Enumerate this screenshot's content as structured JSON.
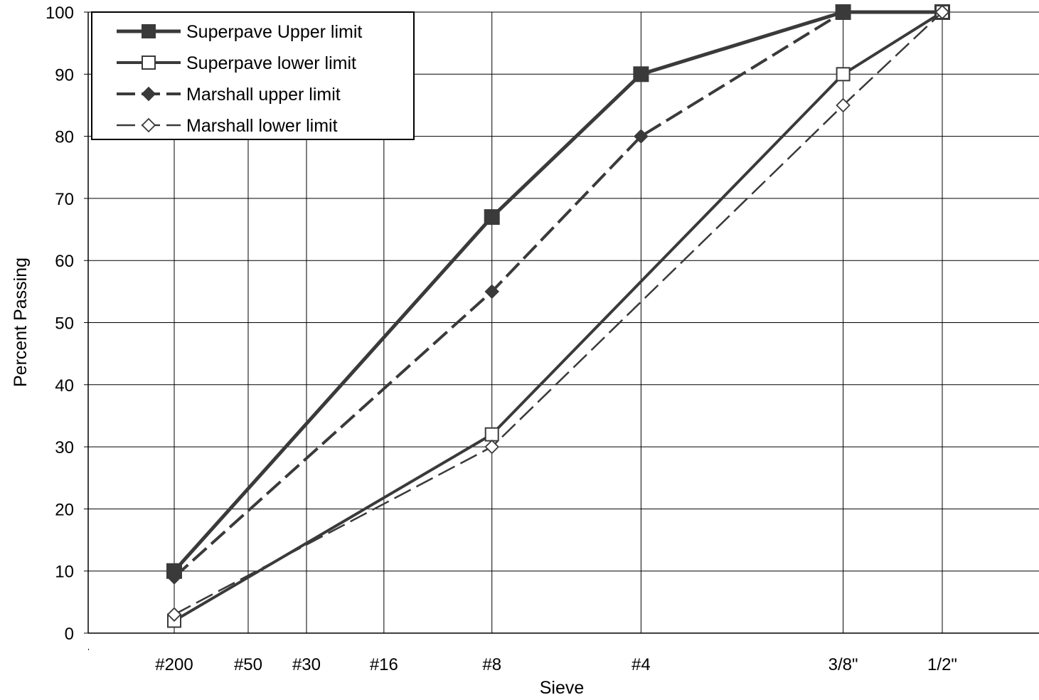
{
  "chart_data": {
    "type": "line",
    "xlabel": "Sieve",
    "ylabel": "Percent Passing",
    "ylim": [
      0,
      100
    ],
    "yticks": [
      "0",
      "10",
      "20",
      "30",
      "40",
      "50",
      "60",
      "70",
      "80",
      "90",
      "100"
    ],
    "grid": true,
    "legend_position": "top-left",
    "categories": [
      "#200",
      "#50",
      "#30",
      "#16",
      "#8",
      "#4",
      "3/8\"",
      "1/2\""
    ],
    "sieve_sizes_mm": [
      0.075,
      0.3,
      0.6,
      1.18,
      2.36,
      4.75,
      9.5,
      12.5
    ],
    "x_scale": "power 0.45",
    "series": [
      {
        "name": "Superpave Upper limit",
        "x": [
          0.075,
          2.36,
          4.75,
          9.5,
          12.5
        ],
        "values": [
          10,
          67,
          90,
          100,
          100
        ],
        "line": "solid",
        "width": 5,
        "marker": "square",
        "filled": true,
        "color": "#3a3a3a"
      },
      {
        "name": "Superpave lower limit",
        "x": [
          0.075,
          2.36,
          9.5,
          12.5
        ],
        "values": [
          2,
          32,
          90,
          100
        ],
        "line": "solid",
        "width": 4,
        "marker": "square",
        "filled": false,
        "color": "#3a3a3a"
      },
      {
        "name": "Marshall upper limit",
        "x": [
          0.075,
          2.36,
          4.75,
          9.5,
          12.5
        ],
        "values": [
          9,
          55,
          80,
          100,
          100
        ],
        "line": "dashed",
        "width": 4,
        "marker": "diamond",
        "filled": true,
        "color": "#3a3a3a"
      },
      {
        "name": "Marshall lower limit",
        "x": [
          0.075,
          2.36,
          9.5,
          12.5
        ],
        "values": [
          3,
          30,
          85,
          100
        ],
        "line": "dashed",
        "width": 2.5,
        "marker": "diamond",
        "filled": false,
        "color": "#3a3a3a"
      }
    ]
  }
}
